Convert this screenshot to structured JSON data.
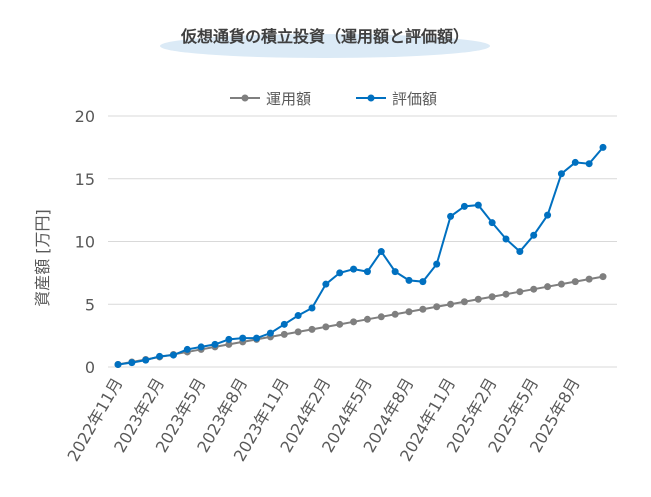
{
  "chart_data": {
    "type": "line",
    "title": "仮想通貨の積立投資（運用額と評価額）",
    "y_label": "資産額 [万円]",
    "categories": [
      "2022年11月",
      null,
      null,
      "2023年2月",
      null,
      null,
      "2023年5月",
      null,
      null,
      "2023年8月",
      null,
      null,
      "2023年11月",
      null,
      null,
      "2024年2月",
      null,
      null,
      "2024年5月",
      null,
      null,
      "2024年8月",
      null,
      null,
      "2024年11月",
      null,
      null,
      "2025年2月",
      null,
      null,
      "2025年5月",
      null,
      null,
      "2025年8月",
      null,
      null
    ],
    "series": [
      {
        "name": "運用額",
        "color": "#7f7f7f",
        "values": [
          0.2,
          0.4,
          0.6,
          0.8,
          1.0,
          1.2,
          1.4,
          1.6,
          1.8,
          2.0,
          2.2,
          2.4,
          2.6,
          2.8,
          3.0,
          3.2,
          3.4,
          3.6,
          3.8,
          4.0,
          4.2,
          4.4,
          4.6,
          4.8,
          5.0,
          5.2,
          5.4,
          5.6,
          5.8,
          6.0,
          6.2,
          6.4,
          6.6,
          6.8,
          7.0,
          7.2
        ]
      },
      {
        "name": "評価額",
        "color": "#0070c0",
        "values": [
          0.2,
          0.35,
          0.55,
          0.85,
          0.95,
          1.4,
          1.6,
          1.8,
          2.2,
          2.3,
          2.3,
          2.7,
          3.4,
          4.1,
          4.7,
          6.6,
          7.5,
          7.8,
          7.6,
          9.2,
          7.6,
          6.9,
          6.8,
          8.2,
          12.0,
          12.8,
          12.9,
          11.5,
          10.2,
          9.2,
          10.5,
          12.1,
          15.4,
          16.3,
          16.2,
          17.5
        ]
      }
    ],
    "ylim": [
      0,
      20
    ],
    "yticks": [
      0,
      5,
      10,
      15,
      20
    ],
    "grid": true,
    "legend": "top"
  }
}
